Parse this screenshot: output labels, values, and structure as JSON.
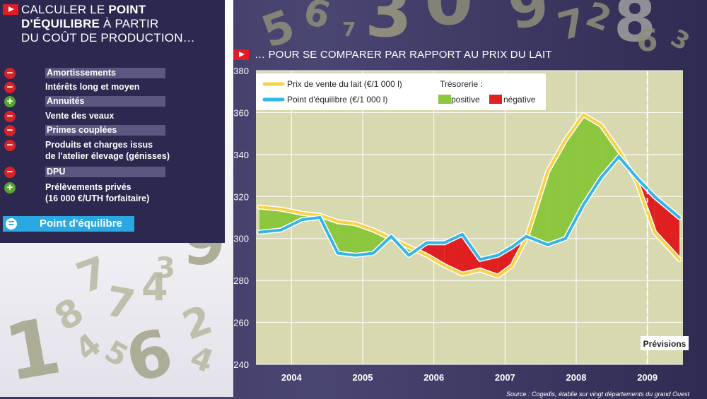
{
  "left_panel": {
    "title_prefix": "CALCULER LE ",
    "title_bold1": "POINT",
    "title_bold2": "D'ÉQUILIBRE",
    "title_line2_rest": " À PARTIR",
    "title_line3": "DU COÛT DE PRODUCTION…",
    "items": [
      {
        "sign": "minus",
        "line1": "Amortissements",
        "line2": "",
        "bar": true
      },
      {
        "sign": "minus",
        "line1": "Intérêts long et moyen",
        "line2": "",
        "bar": false
      },
      {
        "sign": "plus",
        "line1": "Annuités",
        "line2": "",
        "bar": true
      },
      {
        "sign": "minus",
        "line1": "Vente des veaux",
        "line2": "",
        "bar": false
      },
      {
        "sign": "minus",
        "line1": "Primes couplées",
        "line2": "",
        "bar": true
      },
      {
        "sign": "minus",
        "line1": "Produits et charges issus",
        "line2": "de l'atelier élevage (génisses)",
        "bar": false
      },
      {
        "sign": "minus",
        "line1": "DPU",
        "line2": "",
        "bar": true
      },
      {
        "sign": "plus",
        "line1": "Prélèvements privés",
        "line2": "(16 000 €/UTH forfaitaire)",
        "bar": false
      }
    ],
    "result_label": "Point d'équilibre"
  },
  "right_title": "… POUR SE COMPARER PAR RAPPORT AU PRIX DU LAIT",
  "source": "Source : Cogedis, établie sur vingt départements du grand Ouest",
  "colors": {
    "price_line": "#f5d24a",
    "equilibrium_line": "#35b4e8",
    "positive": "#8dc63f",
    "negative": "#e02020",
    "plot_bg": "#d8d9b0"
  },
  "chart_data": {
    "type": "line",
    "x_categories": [
      "2004",
      "2005",
      "2006",
      "2007",
      "2008",
      "2009"
    ],
    "ylim": [
      240,
      380
    ],
    "yticks": [
      240,
      260,
      280,
      300,
      320,
      340,
      360,
      380
    ],
    "grid": true,
    "legend_placement": "top-left",
    "annotation": "Prévisions",
    "legend": {
      "price": "Prix de vente du lait (€/1 000 l)",
      "equilibrium": "Point d'équilibre (€/1 000 l)",
      "tresorerie_label": "Trésorerie :",
      "positive": "positive",
      "negative": "négative"
    },
    "series": [
      {
        "name": "Prix de vente du lait (€/1 000 l)",
        "x": [
          2003.55,
          2003.85,
          2004.15,
          2004.4,
          2004.65,
          2004.9,
          2005.15,
          2005.4,
          2005.65,
          2005.9,
          2006.15,
          2006.4,
          2006.65,
          2006.9,
          2007.1,
          2007.3,
          2007.6,
          2007.85,
          2008.1,
          2008.35,
          2008.6,
          2008.85,
          2009.1,
          2009.45
        ],
        "values": [
          315,
          314,
          312,
          311,
          308,
          307,
          304,
          300,
          296,
          292,
          287,
          283,
          285,
          282,
          287,
          300,
          332,
          347,
          359,
          354,
          342,
          327,
          303,
          290
        ]
      },
      {
        "name": "Point d'équilibre (€/1 000 l)",
        "x": [
          2003.55,
          2003.85,
          2004.15,
          2004.4,
          2004.65,
          2004.9,
          2005.15,
          2005.4,
          2005.65,
          2005.9,
          2006.15,
          2006.4,
          2006.65,
          2006.9,
          2007.1,
          2007.3,
          2007.6,
          2007.85,
          2008.1,
          2008.35,
          2008.6,
          2008.85,
          2009.1,
          2009.45
        ],
        "values": [
          303,
          304,
          309,
          310,
          293,
          292,
          293,
          301,
          292,
          298,
          298,
          302,
          290,
          292,
          296,
          301,
          297,
          300,
          316,
          329,
          339,
          329,
          320,
          310
        ]
      }
    ]
  }
}
